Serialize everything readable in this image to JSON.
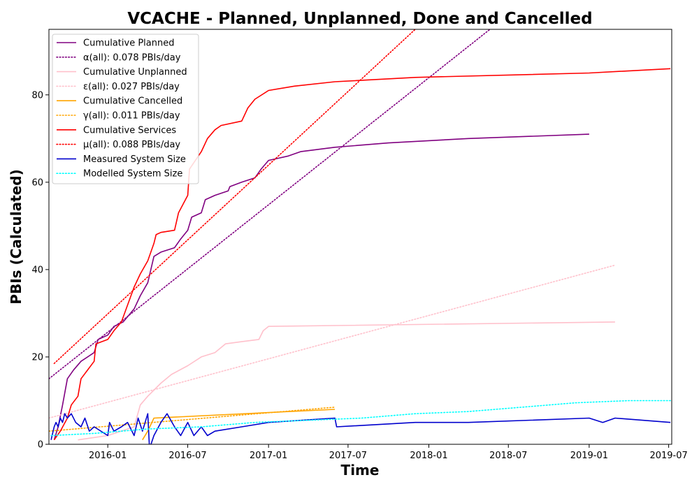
{
  "chart_data": {
    "type": "line",
    "title": "VCACHE - Planned, Unplanned, Done  and Cancelled",
    "xlabel": "Time",
    "ylabel": "PBIs (Calculated)",
    "xlim": [
      "2015-08-20",
      "2019-07-08"
    ],
    "ylim": [
      0,
      95
    ],
    "x_ticks": [
      "2016-01",
      "2016-07",
      "2017-01",
      "2017-07",
      "2018-01",
      "2018-07",
      "2019-01",
      "2019-07"
    ],
    "y_ticks": [
      0,
      20,
      40,
      60,
      80
    ],
    "grid": false,
    "legend_position": "top-left",
    "series": [
      {
        "name": "Cumulative Planned",
        "color": "#800080",
        "style": "solid",
        "points": [
          [
            "2015-09-01",
            1
          ],
          [
            "2015-09-10",
            4
          ],
          [
            "2015-09-20",
            9
          ],
          [
            "2015-10-01",
            15
          ],
          [
            "2015-10-15",
            17
          ],
          [
            "2015-11-01",
            19
          ],
          [
            "2015-12-01",
            21
          ],
          [
            "2015-12-10",
            24
          ],
          [
            "2016-01-01",
            25
          ],
          [
            "2016-01-15",
            27
          ],
          [
            "2016-02-05",
            28
          ],
          [
            "2016-03-01",
            31
          ],
          [
            "2016-03-15",
            34
          ],
          [
            "2016-04-01",
            37
          ],
          [
            "2016-04-15",
            43
          ],
          [
            "2016-05-01",
            44
          ],
          [
            "2016-06-01",
            45
          ],
          [
            "2016-06-15",
            47
          ],
          [
            "2016-07-01",
            49
          ],
          [
            "2016-07-10",
            52
          ],
          [
            "2016-08-01",
            53
          ],
          [
            "2016-08-10",
            56
          ],
          [
            "2016-09-01",
            57
          ],
          [
            "2016-10-01",
            58
          ],
          [
            "2016-10-05",
            59
          ],
          [
            "2016-11-01",
            60
          ],
          [
            "2016-12-01",
            61
          ],
          [
            "2016-12-15",
            63
          ],
          [
            "2017-01-01",
            65
          ],
          [
            "2017-02-15",
            66
          ],
          [
            "2017-03-15",
            67
          ],
          [
            "2017-06-01",
            68
          ],
          [
            "2017-10-01",
            69
          ],
          [
            "2018-04-01",
            70
          ],
          [
            "2019-01-01",
            71
          ]
        ]
      },
      {
        "name": "α(all): 0.078 PBIs/day",
        "color": "#800080",
        "style": "dotted",
        "points": [
          [
            "2015-08-20",
            15
          ],
          [
            "2018-05-20",
            95
          ]
        ]
      },
      {
        "name": "Cumulative Unplanned",
        "color": "#ffc0cb",
        "style": "solid",
        "points": [
          [
            "2015-10-25",
            1
          ],
          [
            "2016-01-01",
            2
          ],
          [
            "2016-03-01",
            4
          ],
          [
            "2016-03-15",
            9
          ],
          [
            "2016-04-01",
            11
          ],
          [
            "2016-05-01",
            14
          ],
          [
            "2016-05-25",
            16
          ],
          [
            "2016-07-01",
            18
          ],
          [
            "2016-08-01",
            20
          ],
          [
            "2016-09-01",
            21
          ],
          [
            "2016-09-25",
            23
          ],
          [
            "2016-11-01",
            23.5
          ],
          [
            "2016-12-10",
            24
          ],
          [
            "2016-12-20",
            26
          ],
          [
            "2017-01-01",
            27
          ],
          [
            "2019-03-01",
            28
          ]
        ]
      },
      {
        "name": "ε(all): 0.027 PBIs/day",
        "color": "#ffc0cb",
        "style": "dotted",
        "points": [
          [
            "2015-08-20",
            6
          ],
          [
            "2019-03-01",
            41
          ]
        ]
      },
      {
        "name": "Cumulative Cancelled",
        "color": "#ffa500",
        "style": "solid",
        "points": [
          [
            "2016-03-20",
            1
          ],
          [
            "2016-04-01",
            3
          ],
          [
            "2016-04-15",
            6
          ],
          [
            "2017-06-01",
            8
          ]
        ]
      },
      {
        "name": "γ(all): 0.011 PBIs/day",
        "color": "#ffa500",
        "style": "dotted",
        "points": [
          [
            "2015-08-20",
            3
          ],
          [
            "2017-06-01",
            8.5
          ]
        ]
      },
      {
        "name": "Cumulative Services",
        "color": "#ff0000",
        "style": "solid",
        "points": [
          [
            "2015-09-01",
            1
          ],
          [
            "2015-09-15",
            3
          ],
          [
            "2015-10-01",
            6
          ],
          [
            "2015-10-10",
            9
          ],
          [
            "2015-10-25",
            11
          ],
          [
            "2015-11-01",
            15
          ],
          [
            "2015-12-01",
            19
          ],
          [
            "2015-12-05",
            23
          ],
          [
            "2016-01-01",
            24
          ],
          [
            "2016-01-15",
            26
          ],
          [
            "2016-02-01",
            28
          ],
          [
            "2016-03-01",
            36
          ],
          [
            "2016-03-15",
            39
          ],
          [
            "2016-04-01",
            42
          ],
          [
            "2016-04-15",
            46
          ],
          [
            "2016-04-20",
            48
          ],
          [
            "2016-05-01",
            48.5
          ],
          [
            "2016-06-01",
            49
          ],
          [
            "2016-06-10",
            53
          ],
          [
            "2016-07-01",
            57
          ],
          [
            "2016-07-05",
            63
          ],
          [
            "2016-08-01",
            67
          ],
          [
            "2016-08-15",
            70
          ],
          [
            "2016-09-01",
            72
          ],
          [
            "2016-09-15",
            73
          ],
          [
            "2016-11-01",
            74
          ],
          [
            "2016-11-15",
            77
          ],
          [
            "2016-12-01",
            79
          ],
          [
            "2017-01-01",
            81
          ],
          [
            "2017-03-01",
            82
          ],
          [
            "2017-06-01",
            83
          ],
          [
            "2017-12-01",
            84
          ],
          [
            "2019-01-01",
            85
          ],
          [
            "2019-07-05",
            86
          ]
        ]
      },
      {
        "name": "μ(all): 0.088 PBIs/day",
        "color": "#ff0000",
        "style": "dotted",
        "points": [
          [
            "2015-09-01",
            18.5
          ],
          [
            "2017-12-01",
            95
          ]
        ]
      },
      {
        "name": "Measured System Size",
        "color": "#0000cd",
        "style": "solid",
        "points": [
          [
            "2015-08-25",
            1
          ],
          [
            "2015-09-01",
            4
          ],
          [
            "2015-09-05",
            5
          ],
          [
            "2015-09-10",
            4
          ],
          [
            "2015-09-15",
            6
          ],
          [
            "2015-09-20",
            5
          ],
          [
            "2015-09-25",
            7
          ],
          [
            "2015-10-01",
            6
          ],
          [
            "2015-10-10",
            7
          ],
          [
            "2015-10-20",
            5
          ],
          [
            "2015-11-01",
            4
          ],
          [
            "2015-11-10",
            6
          ],
          [
            "2015-11-20",
            3
          ],
          [
            "2015-12-01",
            4
          ],
          [
            "2016-01-01",
            2
          ],
          [
            "2016-01-05",
            5
          ],
          [
            "2016-01-15",
            3
          ],
          [
            "2016-02-01",
            4
          ],
          [
            "2016-02-15",
            5
          ],
          [
            "2016-03-01",
            2
          ],
          [
            "2016-03-10",
            6
          ],
          [
            "2016-03-20",
            3
          ],
          [
            "2016-04-01",
            7
          ],
          [
            "2016-04-05",
            -1
          ],
          [
            "2016-04-15",
            2
          ],
          [
            "2016-05-01",
            5
          ],
          [
            "2016-05-15",
            7
          ],
          [
            "2016-06-01",
            4
          ],
          [
            "2016-06-15",
            2
          ],
          [
            "2016-07-01",
            5
          ],
          [
            "2016-07-15",
            2
          ],
          [
            "2016-08-01",
            4
          ],
          [
            "2016-08-15",
            2
          ],
          [
            "2016-09-01",
            3
          ],
          [
            "2016-11-01",
            4
          ],
          [
            "2017-01-01",
            5
          ],
          [
            "2017-06-01",
            6
          ],
          [
            "2017-06-05",
            4
          ],
          [
            "2017-12-01",
            5
          ],
          [
            "2018-04-01",
            5
          ],
          [
            "2019-01-01",
            6
          ],
          [
            "2019-02-01",
            5
          ],
          [
            "2019-03-01",
            6
          ],
          [
            "2019-07-05",
            5
          ]
        ]
      },
      {
        "name": "Modelled System Size",
        "color": "#00ffff",
        "style": "dotted",
        "points": [
          [
            "2015-08-25",
            2
          ],
          [
            "2015-12-01",
            2.5
          ],
          [
            "2016-04-01",
            3.5
          ],
          [
            "2016-08-01",
            4
          ],
          [
            "2016-12-01",
            5
          ],
          [
            "2017-04-01",
            5.5
          ],
          [
            "2017-08-01",
            6
          ],
          [
            "2017-12-01",
            7
          ],
          [
            "2018-04-01",
            7.5
          ],
          [
            "2018-08-01",
            8.5
          ],
          [
            "2018-12-01",
            9.5
          ],
          [
            "2019-04-01",
            10
          ],
          [
            "2019-07-05",
            10
          ]
        ]
      }
    ]
  }
}
